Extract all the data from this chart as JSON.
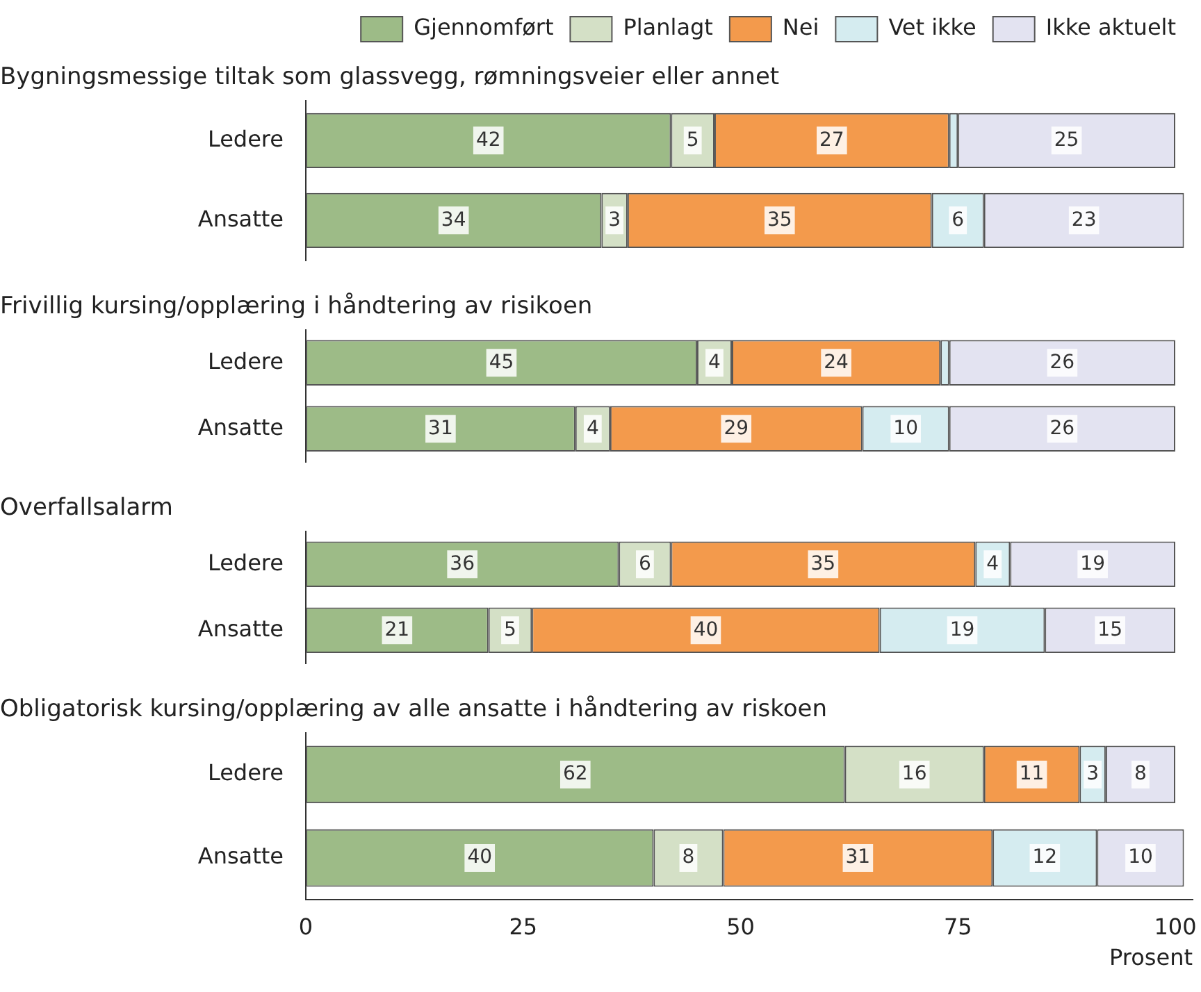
{
  "chart_data": [
    {
      "type": "bar",
      "orientation": "horizontal",
      "stacked": true,
      "title": "Bygningsmessige tiltak som glassvegg, rømningsveier eller annet",
      "categories": [
        "Ledere",
        "Ansatte"
      ],
      "tick_labels": "y",
      "legend": "top right",
      "series": [
        {
          "name": "Gjennomført",
          "color": "#9dbb87",
          "values": [
            42,
            34
          ],
          "value_labels": [
            "42",
            "34"
          ]
        },
        {
          "name": "Planlagt",
          "color": "#d4e0c6",
          "values": [
            5,
            3
          ],
          "value_labels": [
            "5",
            "3"
          ]
        },
        {
          "name": "Nei",
          "color": "#f39a4c",
          "values": [
            27,
            35
          ],
          "value_labels": [
            "27",
            "35"
          ]
        },
        {
          "name": "Vet ikke",
          "color": "#d5ecf0",
          "values": [
            1,
            6
          ],
          "value_labels": [
            null,
            "6"
          ]
        },
        {
          "name": "Ikke aktuelt",
          "color": "#e3e3f1",
          "values": [
            25,
            23
          ],
          "value_labels": [
            "25",
            "23"
          ]
        }
      ]
    },
    {
      "type": "bar",
      "orientation": "horizontal",
      "stacked": true,
      "title": "Frivillig kursing/opplæring i håndtering av risikoen",
      "categories": [
        "Ledere",
        "Ansatte"
      ],
      "tick_labels": "y",
      "series": [
        {
          "color": "#9dbb87",
          "values": [
            45,
            31
          ],
          "value_labels": [
            "45",
            "31"
          ]
        },
        {
          "color": "#d4e0c6",
          "values": [
            4,
            4
          ],
          "value_labels": [
            "4",
            "4"
          ]
        },
        {
          "color": "#f39a4c",
          "values": [
            24,
            29
          ],
          "value_labels": [
            "24",
            "29"
          ]
        },
        {
          "color": "#d5ecf0",
          "values": [
            1,
            10
          ],
          "value_labels": [
            null,
            "10"
          ]
        },
        {
          "color": "#e3e3f1",
          "values": [
            26,
            26
          ],
          "value_labels": [
            "26",
            "26"
          ]
        }
      ]
    },
    {
      "type": "bar",
      "orientation": "horizontal",
      "stacked": true,
      "title": "Overfallsalarm",
      "categories": [
        "Ledere",
        "Ansatte"
      ],
      "tick_labels": "y",
      "series": [
        {
          "color": "#9dbb87",
          "values": [
            36,
            21
          ],
          "value_labels": [
            "36",
            "21"
          ]
        },
        {
          "color": "#d4e0c6",
          "values": [
            6,
            5
          ],
          "value_labels": [
            "6",
            "5"
          ]
        },
        {
          "color": "#f39a4c",
          "values": [
            35,
            40
          ],
          "value_labels": [
            "35",
            "40"
          ]
        },
        {
          "color": "#d5ecf0",
          "values": [
            4,
            19
          ],
          "value_labels": [
            "4",
            "19"
          ]
        },
        {
          "color": "#e3e3f1",
          "values": [
            19,
            15
          ],
          "value_labels": [
            "19",
            "15"
          ]
        }
      ]
    },
    {
      "type": "bar",
      "orientation": "horizontal",
      "stacked": true,
      "title": "Obligatorisk kursing/opplæring av alle ansatte i håndtering av riskoen",
      "categories": [
        "Ledere",
        "Ansatte"
      ],
      "xlim": [
        0,
        102
      ],
      "xticks": [
        0,
        25,
        50,
        75,
        100
      ],
      "xlabel": "Prosent",
      "series": [
        {
          "color": "#9dbb87",
          "values": [
            62,
            40
          ],
          "value_labels": [
            "62",
            "40"
          ]
        },
        {
          "color": "#d4e0c6",
          "values": [
            16,
            8
          ],
          "value_labels": [
            "16",
            "8"
          ]
        },
        {
          "color": "#f39a4c",
          "values": [
            11,
            31
          ],
          "value_labels": [
            "11",
            "31"
          ]
        },
        {
          "color": "#d5ecf0",
          "values": [
            3,
            12
          ],
          "value_labels": [
            "3",
            "12"
          ]
        },
        {
          "color": "#e3e3f1",
          "values": [
            8,
            10
          ],
          "value_labels": [
            "8",
            "10"
          ]
        }
      ]
    }
  ]
}
